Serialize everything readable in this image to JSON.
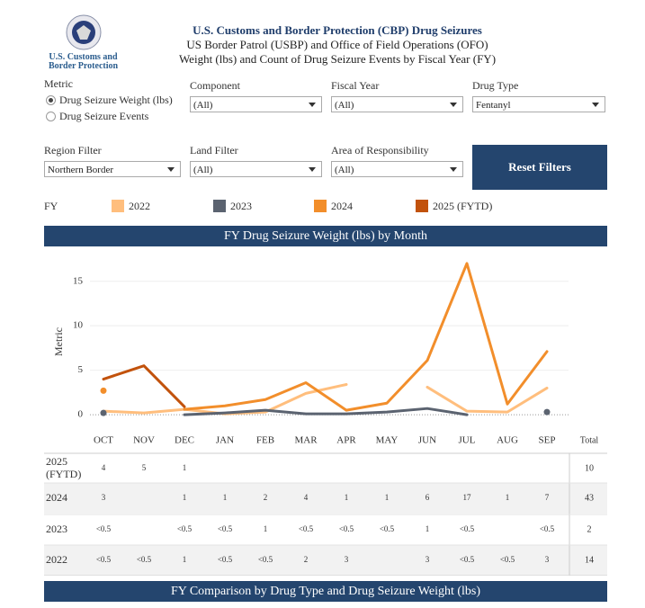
{
  "header": {
    "logo_text": "U.S. Customs and Border Protection",
    "title": "U.S. Customs and Border Protection (CBP) Drug Seizures",
    "subtitle1": "US Border Patrol (USBP) and Office of Field Operations (OFO)",
    "subtitle2": "Weight (lbs) and Count of Drug Seizure Events by Fiscal Year (FY)"
  },
  "filters": {
    "metric": {
      "label": "Metric",
      "options": [
        "Drug Seizure Weight (lbs)",
        "Drug Seizure Events"
      ]
    },
    "component": {
      "label": "Component",
      "value": "(All)"
    },
    "fiscal_year": {
      "label": "Fiscal Year",
      "value": "(All)"
    },
    "drug_type": {
      "label": "Drug Type",
      "value": "Fentanyl"
    },
    "region": {
      "label": "Region Filter",
      "value": "Northern Border"
    },
    "land": {
      "label": "Land Filter",
      "value": "(All)"
    },
    "aor": {
      "label": "Area of Responsibility",
      "value": "(All)"
    },
    "reset": "Reset Filters"
  },
  "legend_title": "FY",
  "section1": "FY Drug Seizure Weight (lbs) by Month",
  "section2": "FY Comparison by Drug Type and Drug Seizure Weight (lbs)",
  "chart_data": {
    "type": "line",
    "y_label": "Metric",
    "categories": [
      "OCT",
      "NOV",
      "DEC",
      "JAN",
      "FEB",
      "MAR",
      "APR",
      "MAY",
      "JUN",
      "JUL",
      "AUG",
      "SEP"
    ],
    "ylim": [
      -1,
      17.6
    ],
    "yticks": [
      0,
      5,
      10,
      15
    ],
    "grid": true,
    "series": [
      {
        "name": "2022",
        "color": "#ffbe7d",
        "values": [
          0.4,
          0.2,
          0.6,
          0.1,
          0.3,
          2.4,
          3.4,
          null,
          3.1,
          0.4,
          0.3,
          3.0
        ]
      },
      {
        "name": "2023",
        "color": "#5b6370",
        "values": [
          0.2,
          null,
          0,
          0.2,
          0.5,
          0.1,
          0.1,
          0.3,
          0.7,
          0,
          null,
          0.3
        ]
      },
      {
        "name": "2024",
        "color": "#f28e2b",
        "values": [
          2.7,
          null,
          0.6,
          1.0,
          1.7,
          3.6,
          0.5,
          1.3,
          6.1,
          17.0,
          1.2,
          7.1
        ]
      },
      {
        "name": "2025 (FYTD)",
        "color": "#c2520c",
        "values": [
          4.0,
          5.5,
          0.9,
          null,
          null,
          null,
          null,
          null,
          null,
          null,
          null,
          null
        ]
      }
    ]
  },
  "table": {
    "total_label": "Total",
    "rows": [
      {
        "label": "2025 (FYTD)",
        "cells": [
          4,
          5,
          1,
          null,
          null,
          null,
          null,
          null,
          null,
          null,
          null,
          null
        ],
        "total": 10
      },
      {
        "label": "2024",
        "cells": [
          3,
          null,
          1,
          1,
          2,
          4,
          1,
          1,
          6,
          17,
          1,
          7
        ],
        "total": 43
      },
      {
        "label": "2023",
        "cells": [
          "<0.5",
          null,
          "<0.5",
          "<0.5",
          1,
          "<0.5",
          "<0.5",
          "<0.5",
          1,
          "<0.5",
          null,
          "<0.5"
        ],
        "total": 2
      },
      {
        "label": "2022",
        "cells": [
          "<0.5",
          "<0.5",
          1,
          "<0.5",
          "<0.5",
          2,
          3,
          null,
          3,
          "<0.5",
          "<0.5",
          3
        ],
        "total": 14
      }
    ]
  }
}
